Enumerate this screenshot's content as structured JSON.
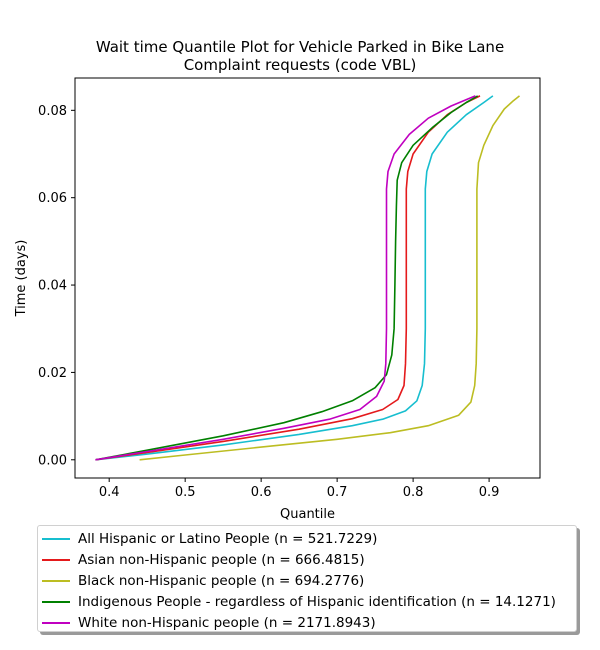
{
  "chart_data": {
    "type": "line",
    "title": "Wait time Quantile Plot for Vehicle Parked in Bike Lane",
    "subtitle": "Complaint  requests (code VBL)",
    "xlabel": "Quantile",
    "ylabel": "Time (days)",
    "xlim": [
      0.355,
      0.967
    ],
    "ylim": [
      -0.00417,
      0.0874
    ],
    "xticks": [
      0.4,
      0.5,
      0.6,
      0.7,
      0.8,
      0.9
    ],
    "xtick_labels": [
      "0.4",
      "0.5",
      "0.6",
      "0.7",
      "0.8",
      "0.9"
    ],
    "yticks": [
      0.0,
      0.02,
      0.04,
      0.06,
      0.08
    ],
    "ytick_labels": [
      "0.00",
      "0.02",
      "0.04",
      "0.06",
      "0.08"
    ],
    "grid": false,
    "legend_position": "below",
    "series": [
      {
        "name": "All Hispanic or Latino People (n = 521.7229)",
        "color": "#17becf",
        "points": [
          [
            0.382,
            0.0
          ],
          [
            0.45,
            0.0013
          ],
          [
            0.55,
            0.0034
          ],
          [
            0.65,
            0.0058
          ],
          [
            0.72,
            0.0078
          ],
          [
            0.76,
            0.0093
          ],
          [
            0.79,
            0.0112
          ],
          [
            0.805,
            0.0135
          ],
          [
            0.812,
            0.017
          ],
          [
            0.815,
            0.022
          ],
          [
            0.816,
            0.03
          ],
          [
            0.816,
            0.045
          ],
          [
            0.816,
            0.062
          ],
          [
            0.818,
            0.066
          ],
          [
            0.825,
            0.07
          ],
          [
            0.845,
            0.075
          ],
          [
            0.87,
            0.079
          ],
          [
            0.893,
            0.0818
          ],
          [
            0.905,
            0.0833
          ]
        ]
      },
      {
        "name": "Asian non-Hispanic people (n = 666.4815)",
        "color": "#e41a1c",
        "points": [
          [
            0.382,
            0.0
          ],
          [
            0.45,
            0.0017
          ],
          [
            0.55,
            0.0042
          ],
          [
            0.65,
            0.007
          ],
          [
            0.72,
            0.0094
          ],
          [
            0.76,
            0.0115
          ],
          [
            0.78,
            0.0138
          ],
          [
            0.788,
            0.017
          ],
          [
            0.79,
            0.022
          ],
          [
            0.791,
            0.03
          ],
          [
            0.791,
            0.045
          ],
          [
            0.791,
            0.062
          ],
          [
            0.793,
            0.066
          ],
          [
            0.8,
            0.07
          ],
          [
            0.82,
            0.075
          ],
          [
            0.845,
            0.079
          ],
          [
            0.87,
            0.0818
          ],
          [
            0.888,
            0.0833
          ]
        ]
      },
      {
        "name": "Black non-Hispanic people (n = 694.2776)",
        "color": "#bcbd22",
        "points": [
          [
            0.44,
            0.0
          ],
          [
            0.5,
            0.0011
          ],
          [
            0.6,
            0.0029
          ],
          [
            0.7,
            0.0047
          ],
          [
            0.77,
            0.0062
          ],
          [
            0.82,
            0.0078
          ],
          [
            0.86,
            0.0102
          ],
          [
            0.876,
            0.0132
          ],
          [
            0.881,
            0.017
          ],
          [
            0.883,
            0.022
          ],
          [
            0.884,
            0.03
          ],
          [
            0.884,
            0.045
          ],
          [
            0.884,
            0.062
          ],
          [
            0.886,
            0.068
          ],
          [
            0.893,
            0.072
          ],
          [
            0.905,
            0.0765
          ],
          [
            0.92,
            0.0803
          ],
          [
            0.932,
            0.0822
          ],
          [
            0.94,
            0.0833
          ]
        ]
      },
      {
        "name": "Indigenous People - regardless of Hispanic identification (n = 14.1271)",
        "color": "#008000",
        "points": [
          [
            0.382,
            0.0
          ],
          [
            0.45,
            0.0022
          ],
          [
            0.55,
            0.0055
          ],
          [
            0.63,
            0.0085
          ],
          [
            0.68,
            0.011
          ],
          [
            0.72,
            0.0135
          ],
          [
            0.75,
            0.0165
          ],
          [
            0.765,
            0.0195
          ],
          [
            0.772,
            0.024
          ],
          [
            0.775,
            0.03
          ],
          [
            0.776,
            0.04
          ],
          [
            0.777,
            0.05
          ],
          [
            0.778,
            0.058
          ],
          [
            0.779,
            0.064
          ],
          [
            0.785,
            0.068
          ],
          [
            0.8,
            0.072
          ],
          [
            0.825,
            0.076
          ],
          [
            0.85,
            0.0795
          ],
          [
            0.87,
            0.0818
          ],
          [
            0.885,
            0.0833
          ]
        ]
      },
      {
        "name": "White non-Hispanic people (n = 2171.8943)",
        "color": "#c000c0",
        "points": [
          [
            0.382,
            0.0
          ],
          [
            0.45,
            0.0019
          ],
          [
            0.55,
            0.0047
          ],
          [
            0.63,
            0.0072
          ],
          [
            0.69,
            0.0093
          ],
          [
            0.73,
            0.0115
          ],
          [
            0.752,
            0.0145
          ],
          [
            0.762,
            0.018
          ],
          [
            0.764,
            0.022
          ],
          [
            0.765,
            0.03
          ],
          [
            0.765,
            0.045
          ],
          [
            0.765,
            0.062
          ],
          [
            0.767,
            0.066
          ],
          [
            0.775,
            0.07
          ],
          [
            0.795,
            0.0745
          ],
          [
            0.82,
            0.0782
          ],
          [
            0.85,
            0.081
          ],
          [
            0.872,
            0.0826
          ],
          [
            0.882,
            0.0833
          ]
        ]
      }
    ]
  }
}
